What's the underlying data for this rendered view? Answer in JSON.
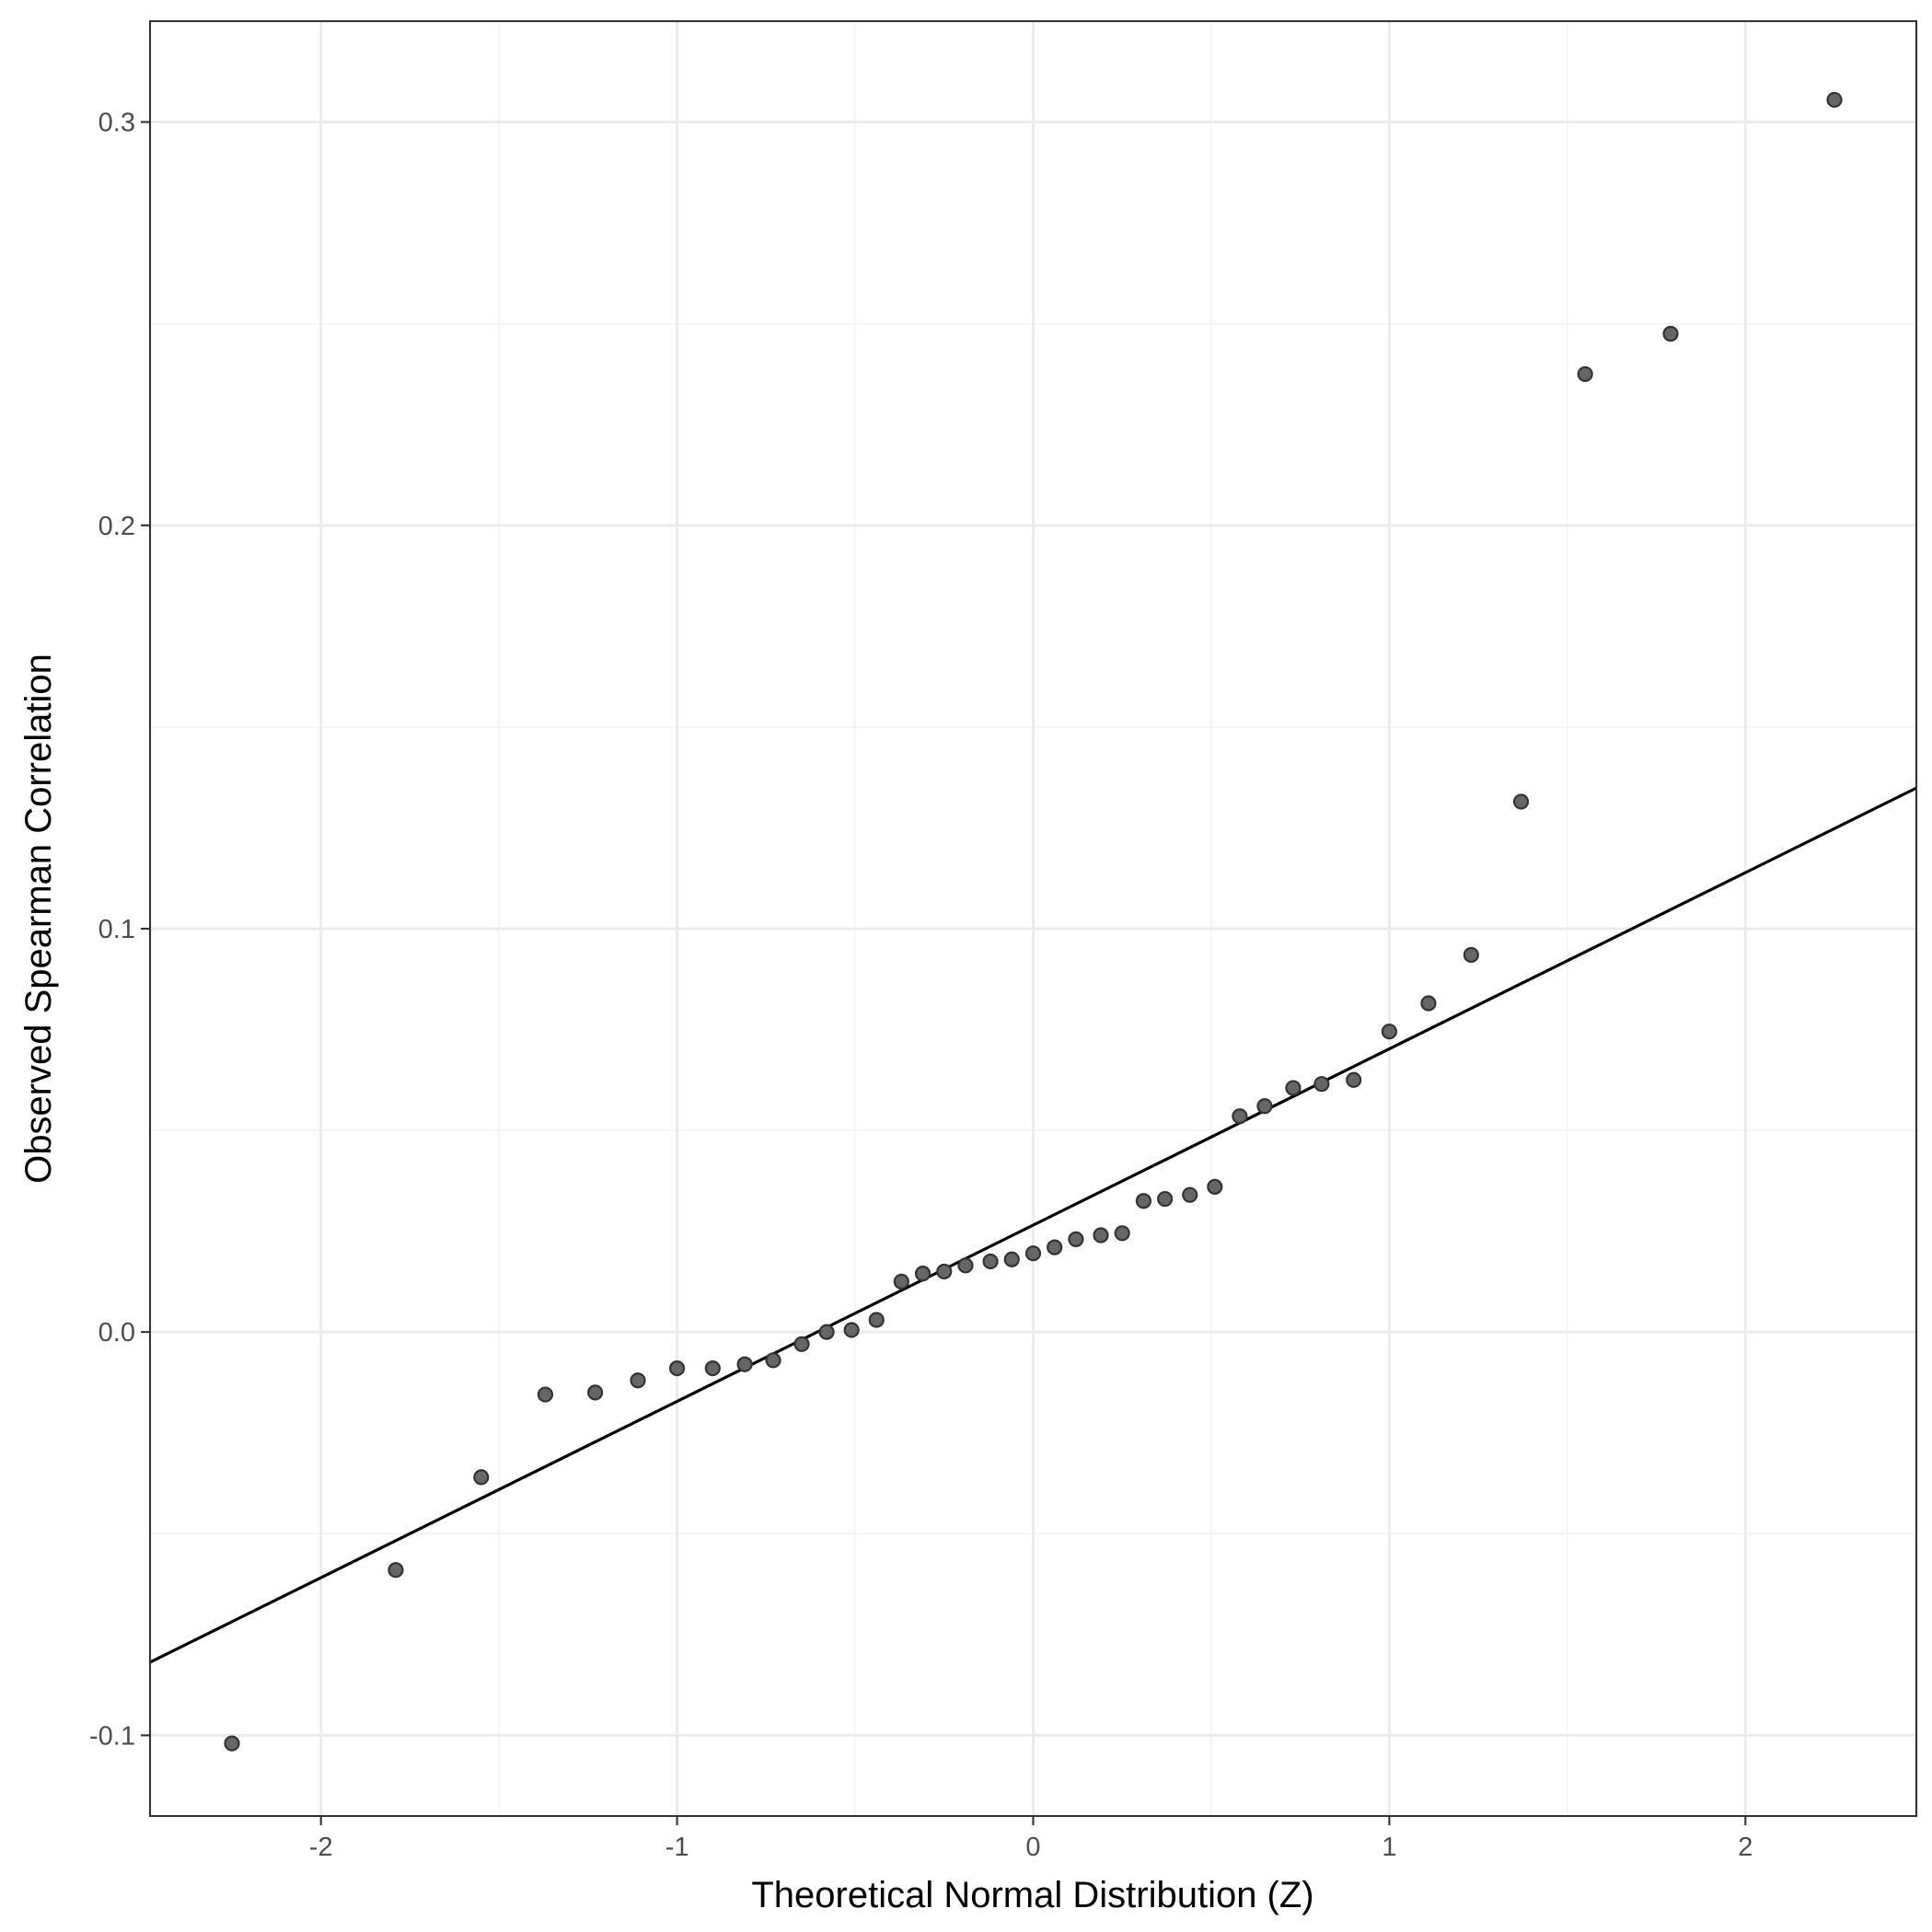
{
  "chart_data": {
    "type": "scatter",
    "title": "",
    "xlabel": "Theoretical Normal Distribution (Z)",
    "ylabel": "Observed Spearman Correlation",
    "xlim": [
      -2.48,
      2.48
    ],
    "ylim": [
      -0.12,
      0.325
    ],
    "x_ticks": [
      -2,
      -1,
      0,
      1,
      2
    ],
    "x_tick_labels": [
      "-2",
      "-1",
      "0",
      "1",
      "2"
    ],
    "y_ticks": [
      -0.1,
      0.0,
      0.1,
      0.2,
      0.3
    ],
    "y_tick_labels": [
      "-0.1",
      "0.0",
      "0.1",
      "0.2",
      "0.3"
    ],
    "grid": true,
    "legend": "none",
    "point_color": "#666666",
    "line_color": "#000000",
    "reference_line": {
      "intercept": 0.0265,
      "slope": 0.0437
    },
    "points": {
      "x": [
        -2.25,
        -1.79,
        -1.55,
        -1.37,
        -1.23,
        -1.11,
        -1.0,
        -0.9,
        -0.81,
        -0.73,
        -0.65,
        -0.58,
        -0.51,
        -0.44,
        -0.37,
        -0.31,
        -0.25,
        -0.19,
        -0.12,
        -0.06,
        0.0,
        0.06,
        0.12,
        0.19,
        0.25,
        0.31,
        0.37,
        0.44,
        0.51,
        0.58,
        0.65,
        0.73,
        0.81,
        0.9,
        1.0,
        1.11,
        1.23,
        1.37,
        1.55,
        1.79,
        2.25
      ],
      "y": [
        -0.102,
        -0.059,
        -0.036,
        -0.0155,
        -0.015,
        -0.012,
        -0.009,
        -0.009,
        -0.008,
        -0.007,
        -0.003,
        0.0,
        0.0005,
        0.003,
        0.0125,
        0.0145,
        0.015,
        0.0165,
        0.0175,
        0.018,
        0.0195,
        0.021,
        0.023,
        0.024,
        0.0245,
        0.0325,
        0.033,
        0.034,
        0.036,
        0.0535,
        0.056,
        0.0605,
        0.0615,
        0.0625,
        0.0745,
        0.0815,
        0.0935,
        0.1315,
        0.2375,
        0.2475,
        0.3055
      ]
    }
  }
}
